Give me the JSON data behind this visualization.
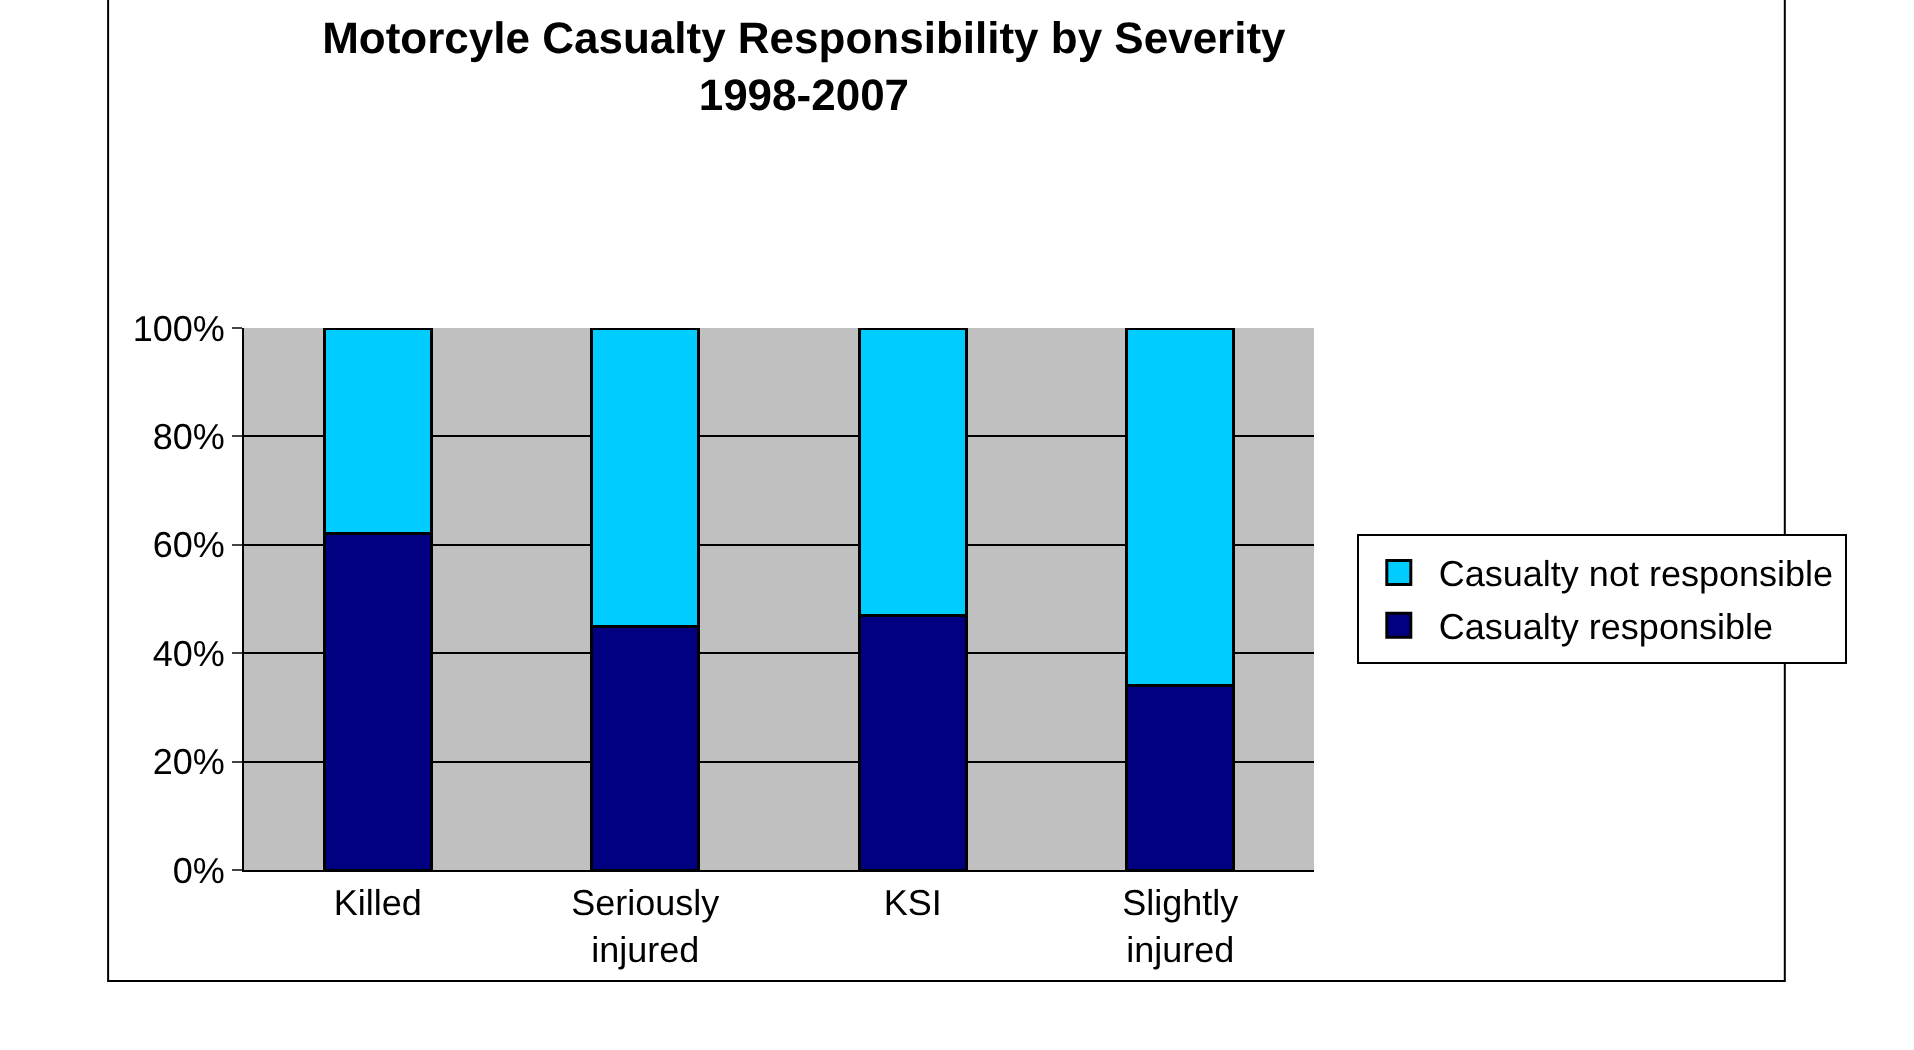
{
  "chart_data": {
    "type": "bar",
    "stacked": true,
    "title": "Motorcyle Casualty Responsibility by Severity 1998-2007",
    "categories": [
      "Killed",
      "Seriously injured",
      "KSI",
      "Slightly injured"
    ],
    "series": [
      {
        "name": "Casualty responsible",
        "color": "#000080",
        "values": [
          62,
          45,
          47,
          34
        ]
      },
      {
        "name": "Casualty not responsible",
        "color": "#00ccff",
        "values": [
          38,
          55,
          53,
          66
        ]
      }
    ],
    "ylim": [
      0,
      100
    ],
    "yticks": [
      {
        "value": 0,
        "label": "0%"
      },
      {
        "value": 20,
        "label": "20%"
      },
      {
        "value": 40,
        "label": "40%"
      },
      {
        "value": 60,
        "label": "60%"
      },
      {
        "value": 80,
        "label": "80%"
      },
      {
        "value": 100,
        "label": "100%"
      }
    ],
    "grid": "y",
    "legend": "right"
  }
}
